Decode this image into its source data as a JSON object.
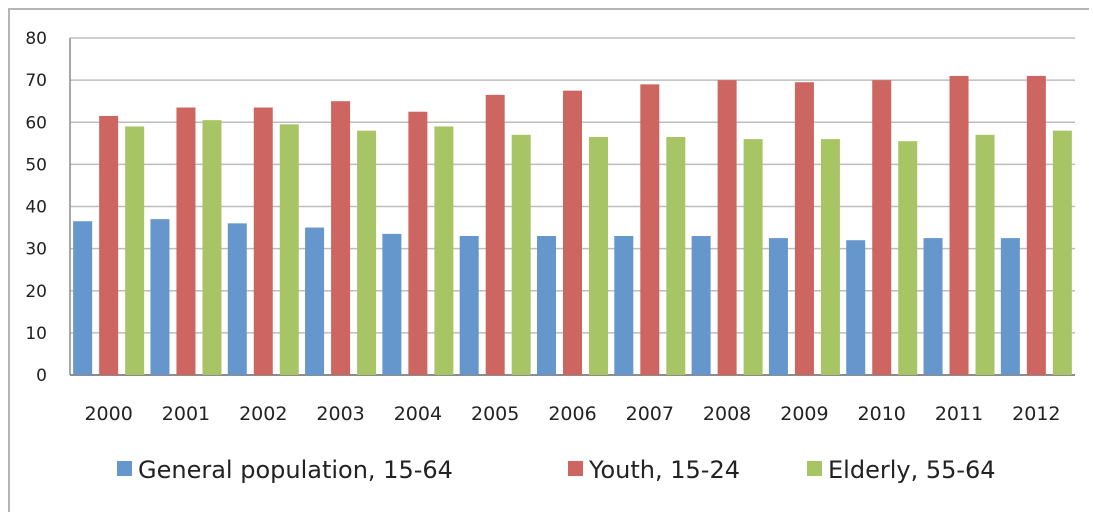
{
  "chart_data": {
    "type": "bar",
    "title": "",
    "xlabel": "",
    "ylabel": "",
    "categories": [
      "2000",
      "2001",
      "2002",
      "2003",
      "2004",
      "2005",
      "2006",
      "2007",
      "2008",
      "2009",
      "2010",
      "2011",
      "2012"
    ],
    "series": [
      {
        "name": "General population, 15-64",
        "color": "#6596cc",
        "values": [
          36.5,
          37,
          36,
          35,
          33.5,
          33,
          33,
          33,
          33,
          32.5,
          32,
          32.5,
          32.5
        ]
      },
      {
        "name": "Youth, 15-24",
        "color": "#cd6660",
        "values": [
          61.5,
          63.5,
          63.5,
          65,
          62.5,
          66.5,
          67.5,
          69,
          70,
          69.5,
          70,
          71,
          71
        ]
      },
      {
        "name": "Elderly, 55-64",
        "color": "#a8c566",
        "values": [
          59,
          60.5,
          59.5,
          58,
          59,
          57,
          56.5,
          56.5,
          56,
          56,
          55.5,
          57,
          58
        ]
      }
    ],
    "ylim": [
      0,
      80
    ],
    "yticks": [
      "0",
      "10",
      "20",
      "30",
      "40",
      "50",
      "60",
      "70",
      "80"
    ],
    "grid": true,
    "legend": "bottom"
  }
}
